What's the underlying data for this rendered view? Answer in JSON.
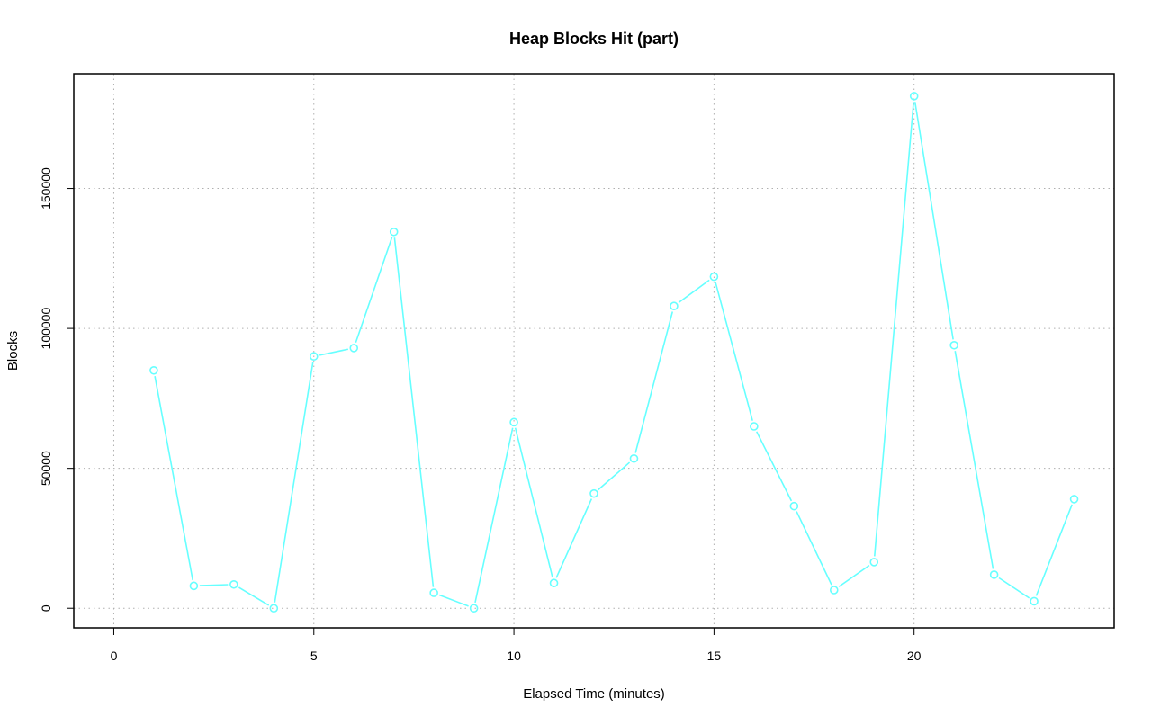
{
  "chart_data": {
    "type": "line",
    "title": "Heap Blocks Hit (part)",
    "xlabel": "Elapsed Time (minutes)",
    "ylabel": "Blocks",
    "xlim": [
      -1,
      25
    ],
    "ylim": [
      -7000,
      191000
    ],
    "x_ticks": [
      0,
      5,
      10,
      15,
      20
    ],
    "y_ticks": [
      0,
      50000,
      100000,
      150000
    ],
    "grid": true,
    "legend": "none",
    "series": [
      {
        "color": "#66ffff",
        "marker": "circle-open",
        "x": [
          1,
          2,
          3,
          4,
          5,
          6,
          7,
          8,
          9,
          10,
          11,
          12,
          13,
          14,
          15,
          16,
          17,
          18,
          19,
          20,
          21,
          22,
          23,
          24
        ],
        "y": [
          85000,
          8000,
          8500,
          0,
          90000,
          93000,
          134500,
          5500,
          0,
          66500,
          9000,
          41000,
          53500,
          108000,
          118500,
          65000,
          36500,
          6500,
          16500,
          183000,
          94000,
          12000,
          2500,
          39000
        ]
      }
    ]
  },
  "colors": {
    "series": "#66ffff",
    "grid": "#b0b0b0",
    "axis": "#000000"
  }
}
